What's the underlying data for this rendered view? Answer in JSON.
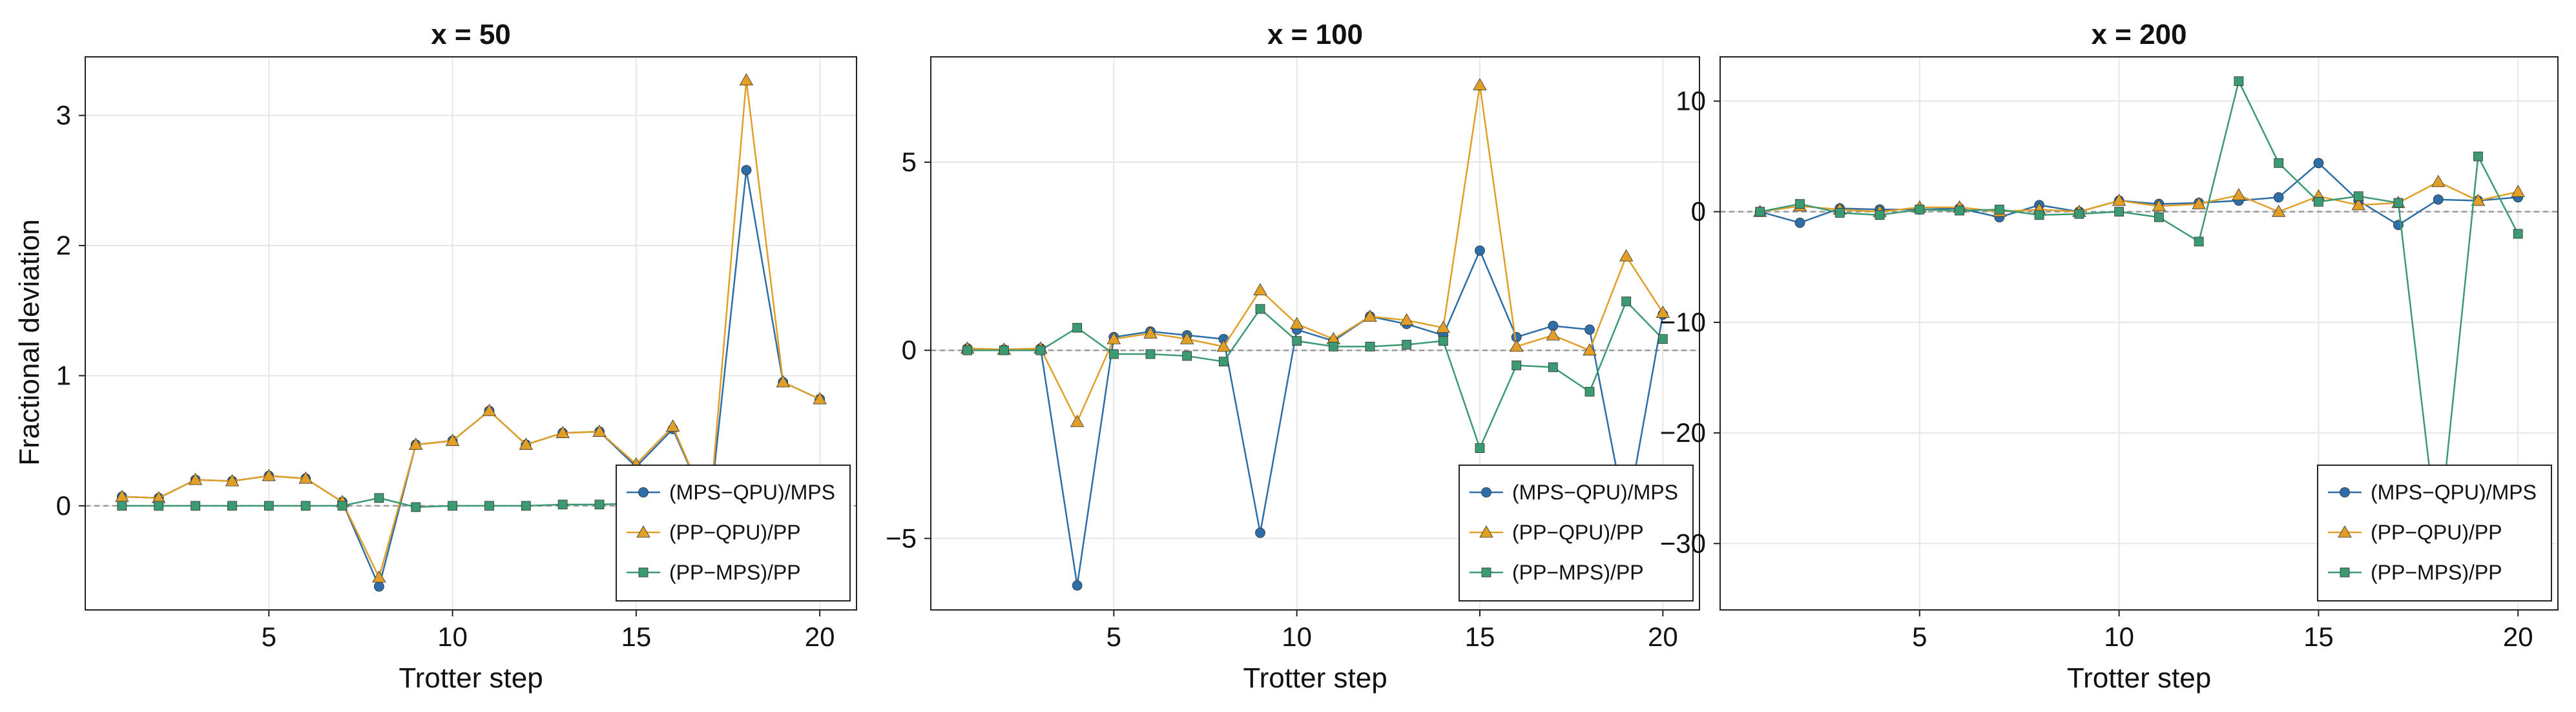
{
  "figure": {
    "shared_ylabel": "Fractional deviation",
    "colors": {
      "mps_qpu": "#2d6da8",
      "pp_qpu": "#e19f27",
      "pp_mps": "#3c9a72",
      "zero_line": "#999999",
      "grid": "#e6e6e6",
      "frame": "#222222"
    }
  },
  "chart_data": [
    {
      "type": "line",
      "title": "x = 50",
      "xlabel": "Trotter step",
      "ylabel": "Fractional deviation",
      "xlim": [
        0,
        21
      ],
      "ylim": [
        -0.8,
        3.45
      ],
      "xticks": [
        5,
        10,
        15,
        20
      ],
      "yticks": [
        0,
        1,
        2,
        3
      ],
      "ytick_labels": [
        "0",
        "1",
        "2",
        "3"
      ],
      "grid": true,
      "legend_position": "bottom-right",
      "x": [
        1,
        2,
        3,
        4,
        5,
        6,
        7,
        8,
        9,
        10,
        11,
        12,
        13,
        14,
        15,
        16,
        17,
        18,
        19,
        20
      ],
      "series": [
        {
          "name": "(MPS−QPU)/MPS",
          "marker": "circle",
          "color": "#2d6da8",
          "values": [
            0.07,
            0.06,
            0.2,
            0.19,
            0.23,
            0.21,
            0.03,
            -0.62,
            0.47,
            0.5,
            0.73,
            0.47,
            0.56,
            0.57,
            0.3,
            0.59,
            -0.05,
            2.58,
            0.95,
            0.82
          ]
        },
        {
          "name": "(PP−QPU)/PP",
          "marker": "triangle",
          "color": "#e19f27",
          "values": [
            0.07,
            0.06,
            0.2,
            0.19,
            0.23,
            0.21,
            0.03,
            -0.55,
            0.47,
            0.5,
            0.73,
            0.47,
            0.56,
            0.57,
            0.32,
            0.61,
            -0.05,
            3.27,
            0.95,
            0.82
          ]
        },
        {
          "name": "(PP−MPS)/PP",
          "marker": "square",
          "color": "#3c9a72",
          "values": [
            0.0,
            0.0,
            0.0,
            0.0,
            0.0,
            0.0,
            0.0,
            0.06,
            -0.01,
            0.0,
            0.0,
            0.0,
            0.01,
            0.01,
            0.02,
            0.02,
            0.02,
            0.02,
            0.02,
            0.02
          ]
        }
      ]
    },
    {
      "type": "line",
      "title": "x = 100",
      "xlabel": "Trotter step",
      "ylabel": "",
      "xlim": [
        0,
        21
      ],
      "ylim": [
        -6.9,
        7.8
      ],
      "xticks": [
        5,
        10,
        15,
        20
      ],
      "yticks": [
        -5,
        0,
        5
      ],
      "ytick_labels": [
        "−5",
        "0",
        "5"
      ],
      "grid": true,
      "legend_position": "bottom-right",
      "x": [
        1,
        2,
        3,
        4,
        5,
        6,
        7,
        8,
        9,
        10,
        11,
        12,
        13,
        14,
        15,
        16,
        17,
        18,
        19,
        20
      ],
      "series": [
        {
          "name": "(MPS−QPU)/MPS",
          "marker": "circle",
          "color": "#2d6da8",
          "values": [
            0.05,
            0.02,
            0.05,
            -6.25,
            0.35,
            0.5,
            0.4,
            0.3,
            -4.85,
            0.55,
            0.25,
            0.9,
            0.7,
            0.4,
            2.65,
            0.35,
            0.65,
            0.55,
            -4.5,
            0.95
          ]
        },
        {
          "name": "(PP−QPU)/PP",
          "marker": "triangle",
          "color": "#e19f27",
          "values": [
            0.05,
            0.02,
            0.05,
            -1.9,
            0.3,
            0.45,
            0.3,
            0.1,
            1.6,
            0.7,
            0.3,
            0.9,
            0.8,
            0.6,
            7.05,
            0.1,
            0.4,
            0.0,
            2.5,
            1.0
          ]
        },
        {
          "name": "(PP−MPS)/PP",
          "marker": "square",
          "color": "#3c9a72",
          "values": [
            0.0,
            0.0,
            0.0,
            0.6,
            -0.1,
            -0.1,
            -0.15,
            -0.3,
            1.1,
            0.25,
            0.1,
            0.1,
            0.15,
            0.25,
            -2.6,
            -0.4,
            -0.45,
            -1.1,
            1.3,
            0.3
          ]
        }
      ]
    },
    {
      "type": "line",
      "title": "x = 200",
      "xlabel": "Trotter step",
      "ylabel": "",
      "xlim": [
        0,
        21
      ],
      "ylim": [
        -36,
        14
      ],
      "xticks": [
        5,
        10,
        15,
        20
      ],
      "yticks": [
        -30,
        -20,
        -10,
        0,
        10
      ],
      "ytick_labels": [
        "−30",
        "−20",
        "−10",
        "0",
        "10"
      ],
      "grid": true,
      "legend_position": "bottom-right",
      "x": [
        1,
        2,
        3,
        4,
        5,
        6,
        7,
        8,
        9,
        10,
        11,
        12,
        13,
        14,
        15,
        16,
        17,
        18,
        19,
        20
      ],
      "series": [
        {
          "name": "(MPS−QPU)/MPS",
          "marker": "circle",
          "color": "#2d6da8",
          "values": [
            0.0,
            -1.0,
            0.3,
            0.2,
            0.2,
            0.3,
            -0.5,
            0.6,
            0.0,
            1.0,
            0.7,
            0.8,
            1.0,
            1.3,
            4.4,
            1.0,
            -1.2,
            1.1,
            1.0,
            1.3
          ]
        },
        {
          "name": "(PP−QPU)/PP",
          "marker": "triangle",
          "color": "#e19f27",
          "values": [
            0.0,
            0.5,
            0.2,
            0.0,
            0.4,
            0.4,
            0.0,
            0.2,
            0.0,
            1.0,
            0.5,
            0.7,
            1.5,
            0.0,
            1.4,
            0.6,
            0.8,
            2.7,
            1.0,
            1.8
          ]
        },
        {
          "name": "(PP−MPS)/PP",
          "marker": "square",
          "color": "#3c9a72",
          "values": [
            0.0,
            0.7,
            -0.1,
            -0.3,
            0.2,
            0.1,
            0.2,
            -0.3,
            -0.2,
            0.0,
            -0.5,
            -2.7,
            11.8,
            4.4,
            0.9,
            1.4,
            0.8,
            -30.0,
            5.0,
            -2.0
          ]
        }
      ]
    }
  ]
}
